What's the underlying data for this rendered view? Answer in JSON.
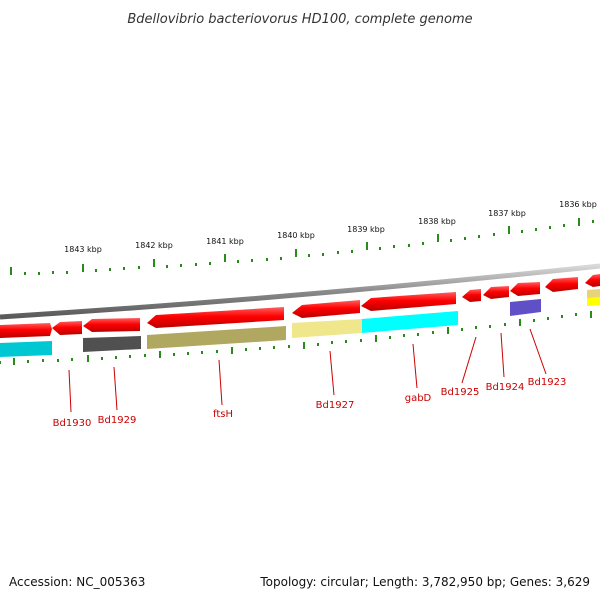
{
  "title": "Bdellovibrio bacteriovorus HD100, complete genome",
  "footer": {
    "accession": "Accession: NC_005363",
    "topology": "Topology: circular; Length: 3,782,950 bp; Genes: 3,629"
  },
  "colors": {
    "forward_gene": "#ff1a1a",
    "backbone": "#888888",
    "tick": "#2a8a1a",
    "label": "#cc0000",
    "gene_colors": [
      "#00c8d2",
      "#505050",
      "#b0a860",
      "#f0e68c",
      "#00ffff",
      "#6050c8",
      "#ffff00"
    ]
  },
  "kbp_labels": [
    "1843 kbp",
    "1842 kbp",
    "1841 kbp",
    "1840 kbp",
    "1839 kbp",
    "1838 kbp",
    "1837 kbp",
    "1836 kbp"
  ],
  "gene_labels": [
    "Bd1930",
    "Bd1929",
    "ftsH",
    "Bd1927",
    "gabD",
    "Bd1925",
    "Bd1924",
    "Bd1923"
  ]
}
